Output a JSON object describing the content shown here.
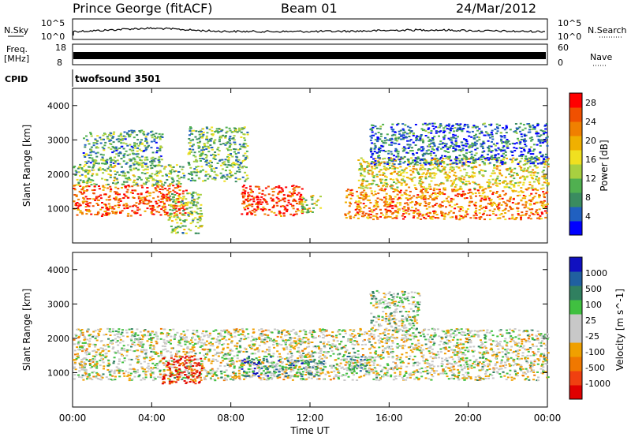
{
  "header": {
    "station": "Prince George (fitACF)",
    "beam": "Beam 01",
    "date": "24/Mar/2012"
  },
  "strip_labels": {
    "nsky": "N.Sky",
    "nsearch": "N.Search",
    "freq_top": "Freq.",
    "freq_unit": "[MHz]",
    "nave": "Nave",
    "cpid": "CPID",
    "nsky_hi": "10^5",
    "nsky_lo": "10^0",
    "nsearch_hi": "10^5",
    "nsearch_lo": "10^0",
    "freq_hi": "18",
    "freq_lo": "8",
    "nave_hi": "60",
    "nave_lo": "0",
    "program": "twofsound 3501"
  },
  "colors": {
    "power_scale": [
      "#0000ff",
      "#2060c0",
      "#3a8c60",
      "#50b050",
      "#a8d040",
      "#f0e020",
      "#f0b000",
      "#f08000",
      "#f05000",
      "#ff0000"
    ],
    "velocity_scale": [
      "#e00000",
      "#f04010",
      "#f07800",
      "#f0a000",
      "#c8c8c8",
      "#c8c8c8",
      "#40c040",
      "#308060",
      "#2060a0",
      "#1010c0"
    ]
  },
  "chart_data": [
    {
      "type": "heatmap",
      "name": "power",
      "xlabel": "Time UT",
      "ylabel": "Slant Range [km]",
      "x_ticks": [
        "00:00",
        "04:00",
        "08:00",
        "12:00",
        "16:00",
        "20:00",
        "00:00"
      ],
      "xlim_hours": [
        0,
        24
      ],
      "ylim": [
        0,
        4500
      ],
      "y_ticks": [
        1000,
        2000,
        3000,
        4000
      ],
      "colorbar": {
        "label": "Power [dB]",
        "ticks": [
          4,
          8,
          12,
          16,
          20,
          24,
          28
        ],
        "range": [
          0,
          30
        ]
      },
      "regions": [
        {
          "t0": 0.0,
          "t1": 5.7,
          "r0": 800,
          "r1": 1700,
          "level": 0.85
        },
        {
          "t0": 0.0,
          "t1": 5.6,
          "r0": 1700,
          "r1": 2300,
          "level": 0.4
        },
        {
          "t0": 0.5,
          "t1": 4.5,
          "r0": 2300,
          "r1": 3300,
          "level": 0.3
        },
        {
          "t0": 4.8,
          "t1": 6.5,
          "r0": 300,
          "r1": 1500,
          "level": 0.4
        },
        {
          "t0": 5.8,
          "t1": 8.8,
          "r0": 1800,
          "r1": 3400,
          "level": 0.35
        },
        {
          "t0": 8.5,
          "t1": 11.6,
          "r0": 800,
          "r1": 1700,
          "level": 0.9
        },
        {
          "t0": 11.5,
          "t1": 12.5,
          "r0": 900,
          "r1": 1400,
          "level": 0.5
        },
        {
          "t0": 13.7,
          "t1": 24.0,
          "r0": 700,
          "r1": 1600,
          "level": 0.75
        },
        {
          "t0": 14.4,
          "t1": 24.0,
          "r0": 1600,
          "r1": 2500,
          "level": 0.55
        },
        {
          "t0": 15.0,
          "t1": 24.0,
          "r0": 2300,
          "r1": 3500,
          "level": 0.2
        }
      ]
    },
    {
      "type": "heatmap",
      "name": "velocity",
      "xlabel": "Time UT",
      "ylabel": "Slant Range [km]",
      "x_ticks": [
        "00:00",
        "04:00",
        "08:00",
        "12:00",
        "16:00",
        "20:00",
        "00:00"
      ],
      "xlim_hours": [
        0,
        24
      ],
      "ylim": [
        0,
        4500
      ],
      "y_ticks": [
        1000,
        2000,
        3000,
        4000
      ],
      "colorbar": {
        "label": "Velocity [m s^-1]",
        "ticks": [
          1000,
          500,
          100,
          25,
          -25,
          -100,
          -500,
          -1000
        ]
      },
      "regions": [
        {
          "t0": 0.0,
          "t1": 24.0,
          "r0": 800,
          "r1": 2300,
          "level": 0.5
        },
        {
          "t0": 4.5,
          "t1": 6.5,
          "r0": 700,
          "r1": 1500,
          "level": 0.1
        },
        {
          "t0": 8.5,
          "t1": 10.0,
          "r0": 900,
          "r1": 1500,
          "level": 0.8
        },
        {
          "t0": 10.0,
          "t1": 12.8,
          "r0": 900,
          "r1": 1400,
          "level": 0.7
        },
        {
          "t0": 13.8,
          "t1": 15.0,
          "r0": 1000,
          "r1": 1500,
          "level": 0.65
        },
        {
          "t0": 15.0,
          "t1": 17.5,
          "r0": 2200,
          "r1": 3400,
          "level": 0.55
        }
      ]
    }
  ]
}
